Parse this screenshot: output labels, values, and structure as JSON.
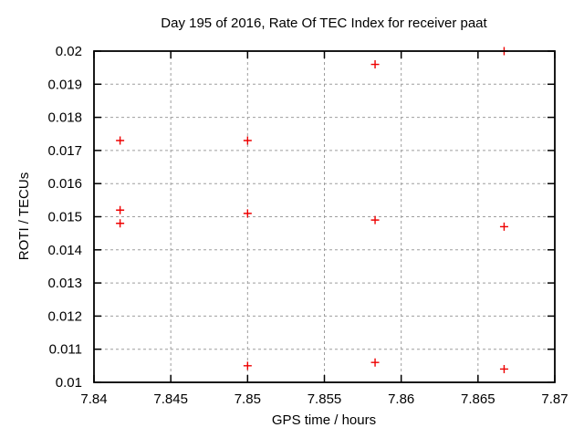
{
  "chart_data": {
    "type": "scatter",
    "title": "Day 195 of 2016, Rate Of TEC Index for receiver paat",
    "xlabel": "GPS time / hours",
    "ylabel": "ROTI / TECUs",
    "xlim": [
      7.84,
      7.87
    ],
    "ylim": [
      0.01,
      0.02
    ],
    "x_ticks": [
      7.84,
      7.845,
      7.85,
      7.855,
      7.86,
      7.865,
      7.87
    ],
    "x_tick_labels": [
      "7.84",
      "7.845",
      "7.85",
      "7.855",
      "7.86",
      "7.865",
      "7.87"
    ],
    "y_ticks": [
      0.01,
      0.011,
      0.012,
      0.013,
      0.014,
      0.015,
      0.016,
      0.017,
      0.018,
      0.019,
      0.02
    ],
    "y_tick_labels": [
      "0.01",
      "0.011",
      "0.012",
      "0.013",
      "0.014",
      "0.015",
      "0.016",
      "0.017",
      "0.018",
      "0.019",
      "0.02"
    ],
    "grid": true,
    "legend_position": "none",
    "marker": "plus",
    "series": [
      {
        "name": "ROTI",
        "points": [
          [
            7.8417,
            0.0173
          ],
          [
            7.8417,
            0.0152
          ],
          [
            7.8417,
            0.0148
          ],
          [
            7.85,
            0.0173
          ],
          [
            7.85,
            0.0151
          ],
          [
            7.85,
            0.0105
          ],
          [
            7.8583,
            0.0196
          ],
          [
            7.8583,
            0.0149
          ],
          [
            7.8583,
            0.0106
          ],
          [
            7.8667,
            0.02
          ],
          [
            7.8667,
            0.0147
          ],
          [
            7.8667,
            0.0104
          ]
        ]
      }
    ],
    "colors": {
      "marker": "#ee0000",
      "grid": "#9e9e9e",
      "frame": "#000000",
      "background": "#ffffff",
      "text": "#000000"
    }
  }
}
